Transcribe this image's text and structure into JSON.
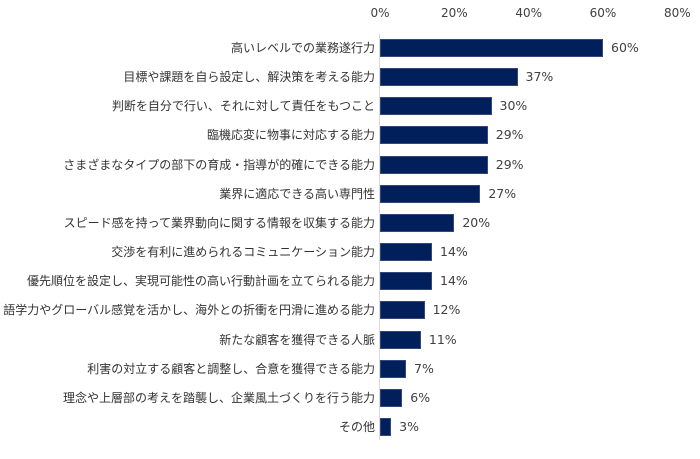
{
  "chart_data": {
    "type": "bar",
    "orientation": "horizontal",
    "title": "",
    "xlabel": "",
    "ylabel": "",
    "xlim": [
      0,
      80
    ],
    "x_ticks": [
      "0%",
      "20%",
      "40%",
      "60%",
      "80%"
    ],
    "x_axis_position": "top",
    "grid": false,
    "legend": null,
    "bar_color": "#001f5b",
    "categories": [
      "高いレベルでの業務遂行力",
      "目標や課題を自ら設定し、解決策を考える能力",
      "判断を自分で行い、それに対して責任をもつこと",
      "臨機応変に物事に対応する能力",
      "さまざまなタイプの部下の育成・指導が的確にできる能力",
      "業界に適応できる高い専門性",
      "スピード感を持って業界動向に関する情報を収集する能力",
      "交渉を有利に進められるコミュニケーション能力",
      "優先順位を設定し、実現可能性の高い行動計画を立てられる能力",
      "語学力やグローバル感覚を活かし、海外との折衝を円滑に進める能力",
      "新たな顧客を獲得できる人脈",
      "利害の対立する顧客と調整し、合意を獲得できる能力",
      "理念や上層部の考えを踏襲し、企業風土づくりを行う能力",
      "その他"
    ],
    "values": [
      60,
      37,
      30,
      29,
      29,
      27,
      20,
      14,
      14,
      12,
      11,
      7,
      6,
      3
    ],
    "value_labels": [
      "60%",
      "37%",
      "30%",
      "29%",
      "29%",
      "27%",
      "20%",
      "14%",
      "14%",
      "12%",
      "11%",
      "7%",
      "6%",
      "3%"
    ]
  }
}
